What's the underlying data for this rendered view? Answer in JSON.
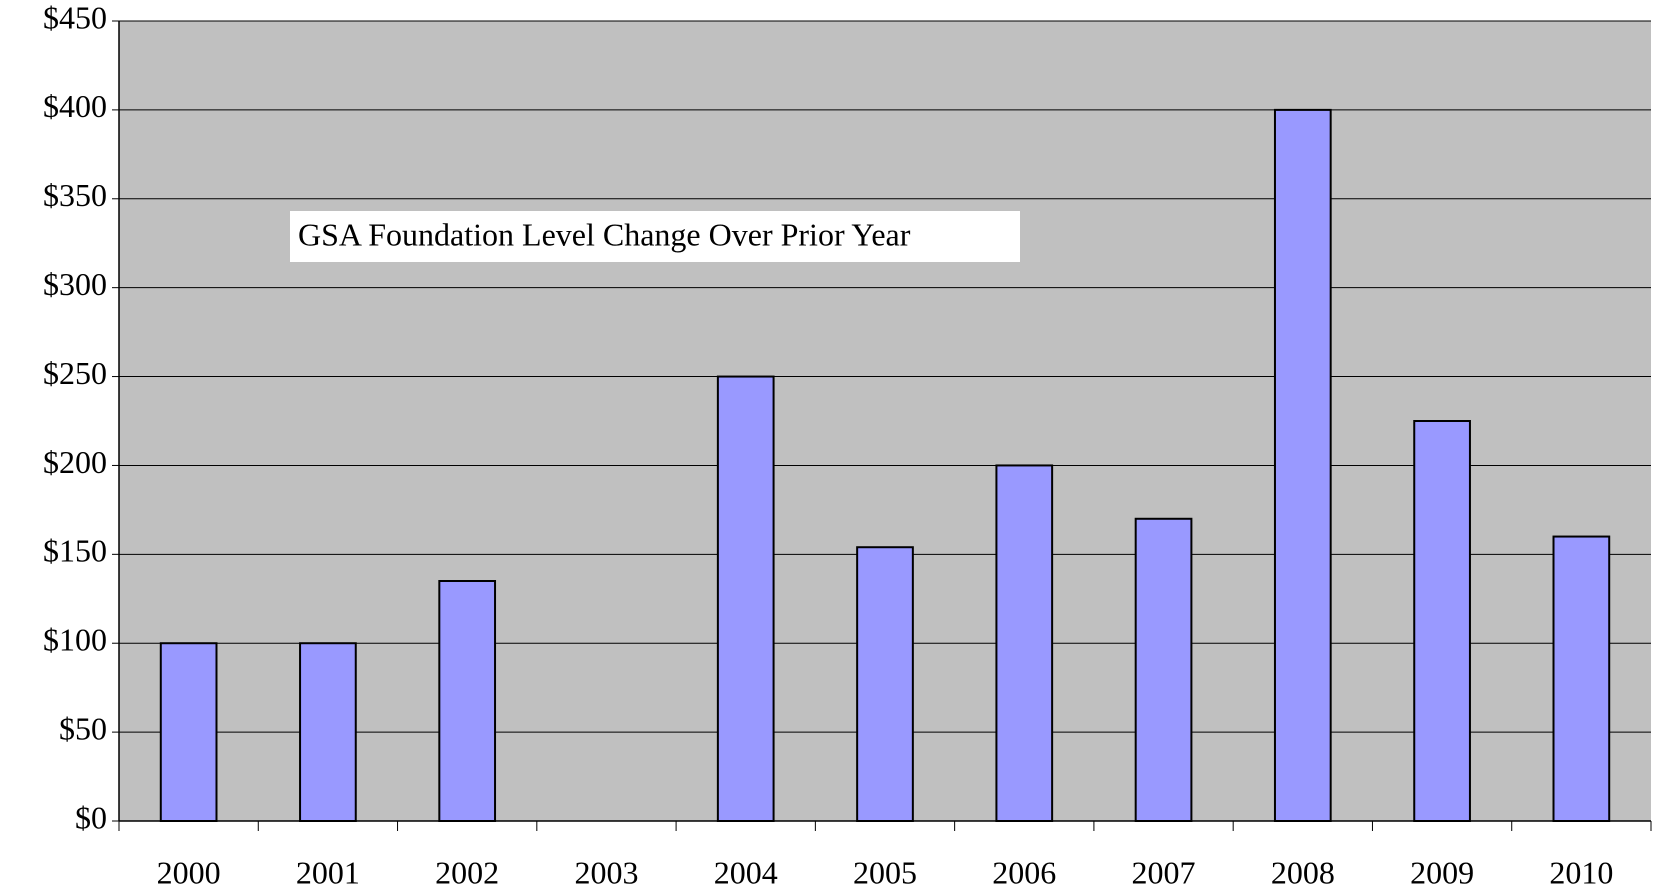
{
  "chart_data": {
    "type": "bar",
    "annotation": "GSA Foundation Level Change Over Prior Year",
    "categories": [
      "2000",
      "2001",
      "2002",
      "2003",
      "2004",
      "2005",
      "2006",
      "2007",
      "2008",
      "2009",
      "2010"
    ],
    "values": [
      100,
      100,
      135,
      null,
      250,
      154,
      200,
      170,
      400,
      225,
      160
    ],
    "color": "#9999ff",
    "plot_background": "#c0c0c0",
    "ylim": [
      0,
      450
    ],
    "yticks": [
      {
        "value": 0,
        "label": "$0"
      },
      {
        "value": 50,
        "label": "$50"
      },
      {
        "value": 100,
        "label": "$100"
      },
      {
        "value": 150,
        "label": "$150"
      },
      {
        "value": 200,
        "label": "$200"
      },
      {
        "value": 250,
        "label": "$250"
      },
      {
        "value": 300,
        "label": "$300"
      },
      {
        "value": 350,
        "label": "$350"
      },
      {
        "value": 400,
        "label": "$400"
      },
      {
        "value": 450,
        "label": "$450"
      }
    ],
    "grid": true
  }
}
